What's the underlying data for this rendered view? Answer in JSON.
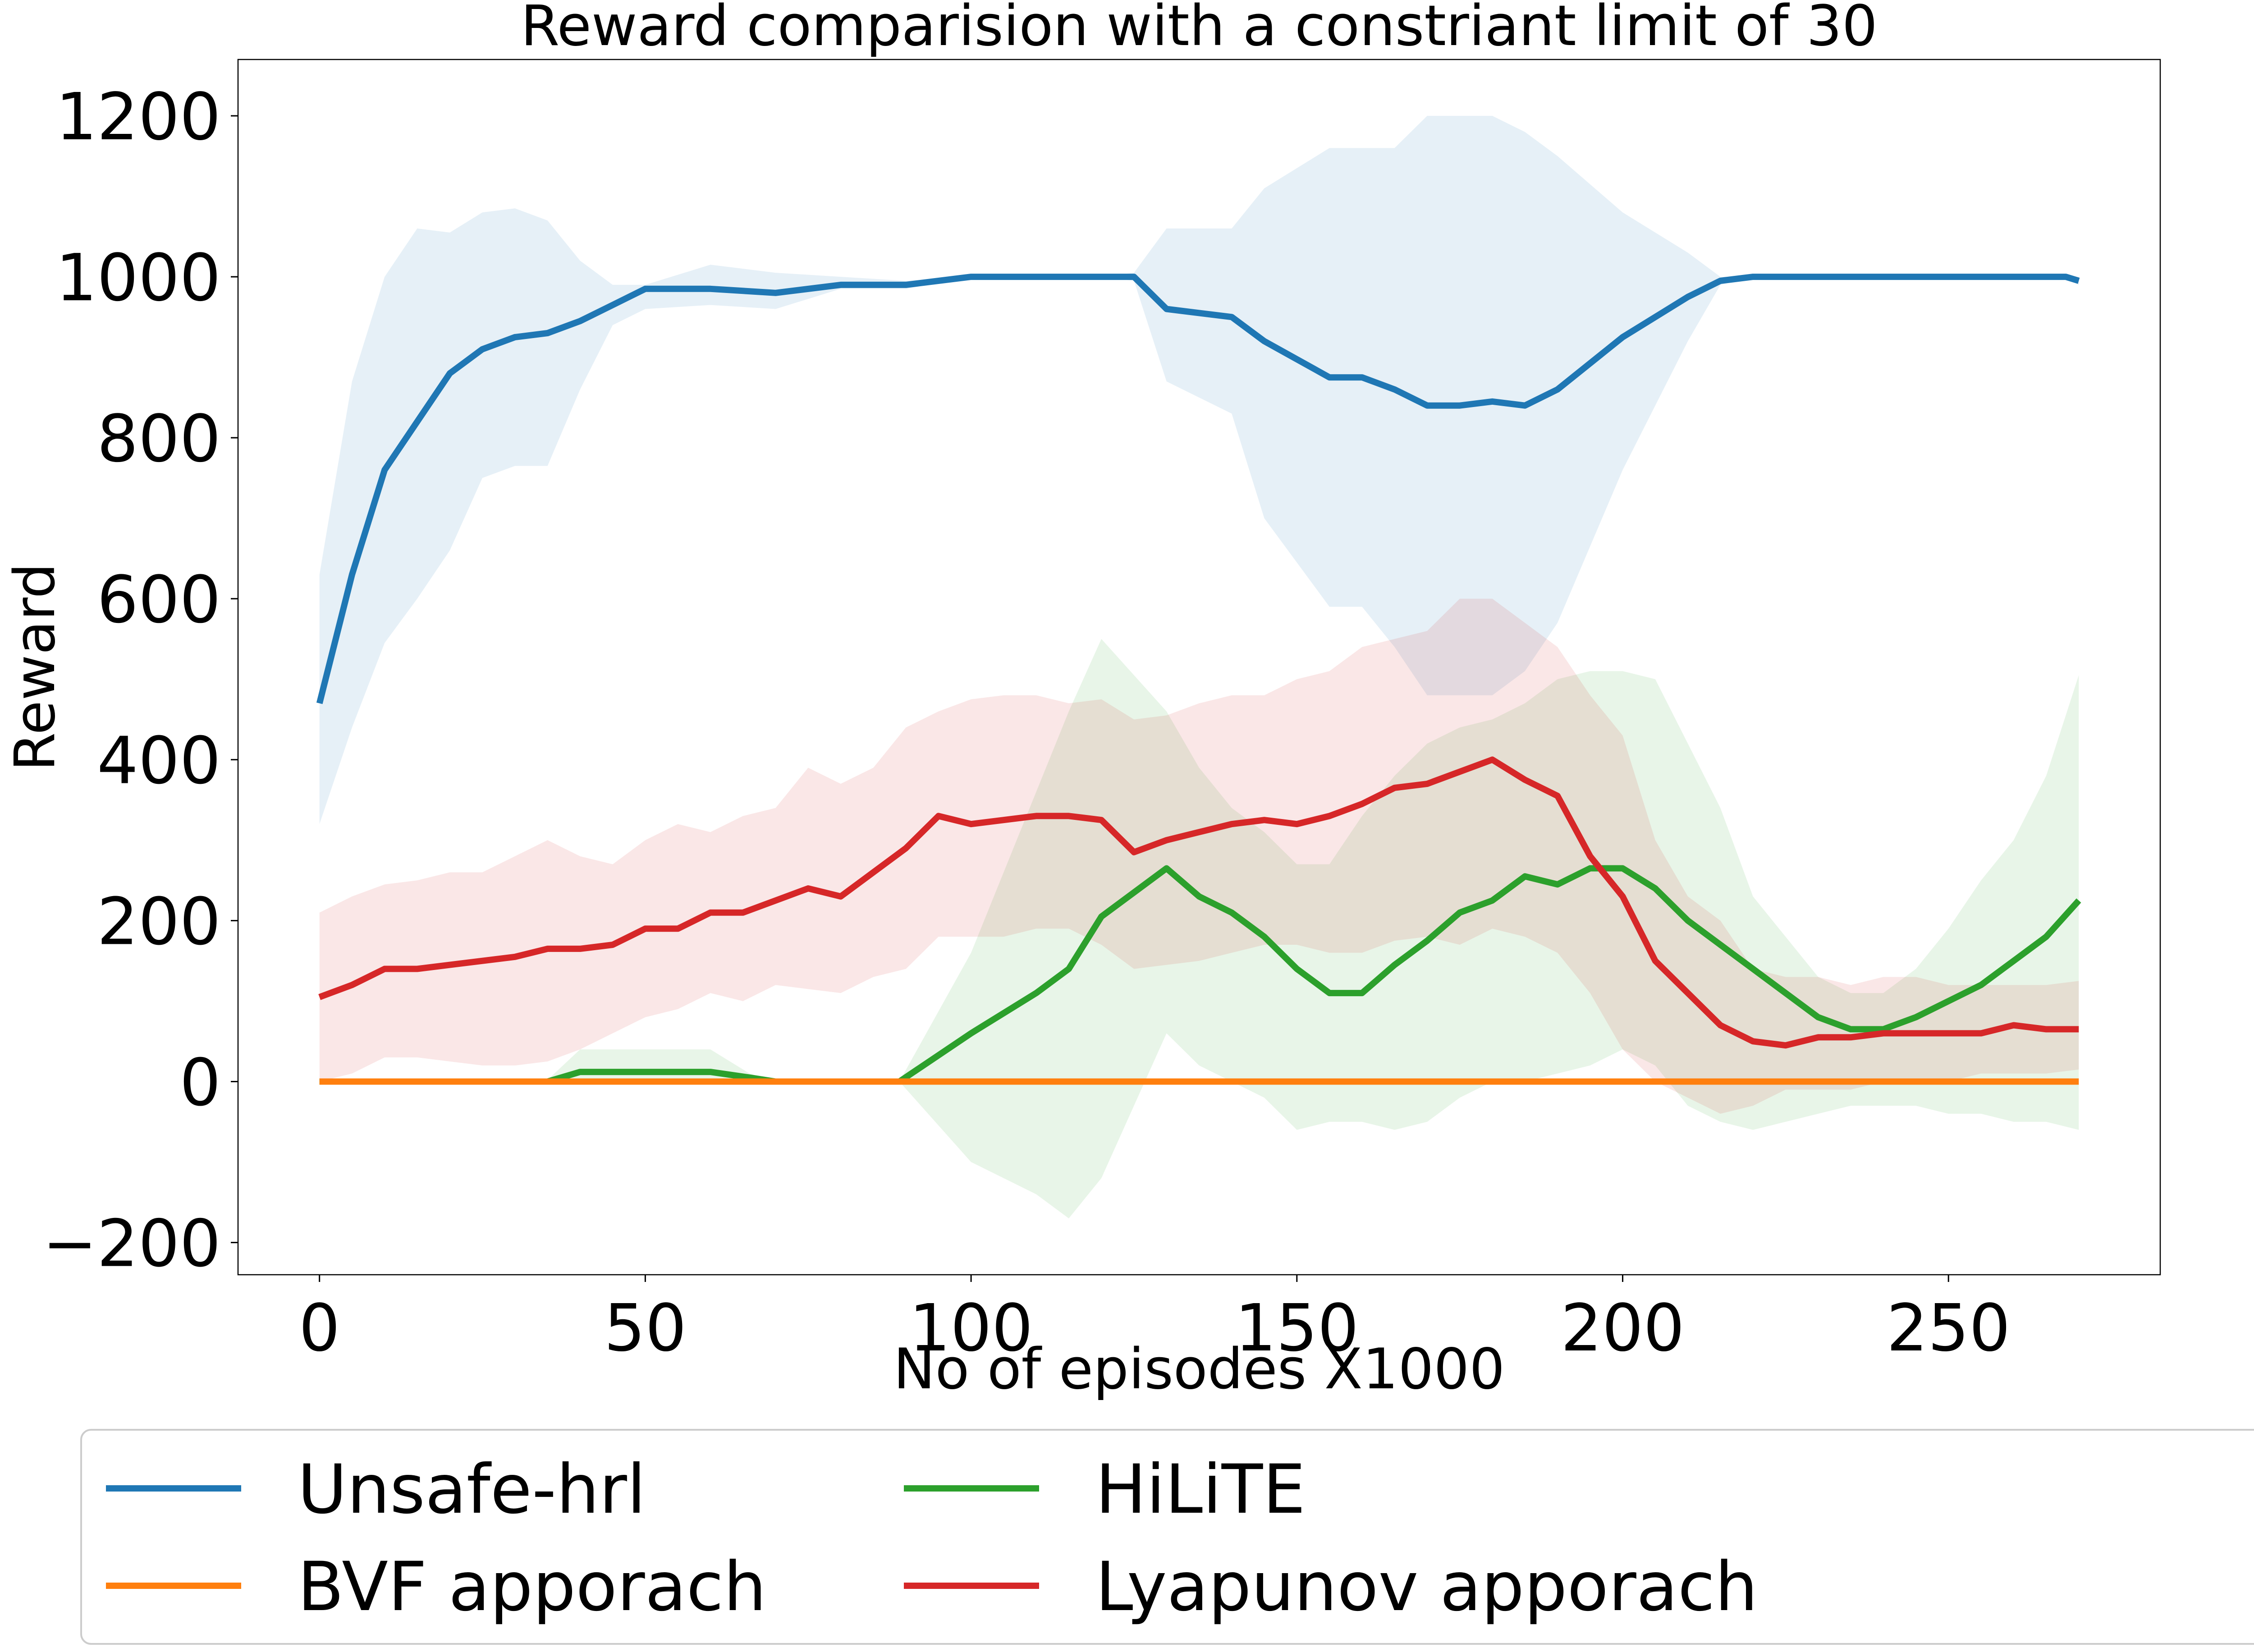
{
  "chart_data": {
    "type": "line",
    "title": "Reward comparision with a constriant limit of 30",
    "xlabel": "No of episodes X1000",
    "ylabel": "Reward",
    "xlim": [
      -12.5,
      282.5
    ],
    "ylim": [
      -240,
      1270
    ],
    "xticks": [
      0,
      50,
      100,
      150,
      200,
      250
    ],
    "xtick_labels": [
      "0",
      "50",
      "100",
      "150",
      "200",
      "250"
    ],
    "yticks": [
      -200,
      0,
      200,
      400,
      600,
      800,
      1000,
      1200
    ],
    "ytick_labels": [
      "−200",
      "0",
      "200",
      "400",
      "600",
      "800",
      "1000",
      "1200"
    ],
    "grid": false,
    "legend_position": "below plot, three columns",
    "series": [
      {
        "name": "Unsafe-hrl",
        "color": "#1f77b4",
        "x": [
          0,
          5,
          10,
          15,
          20,
          25,
          30,
          35,
          40,
          45,
          50,
          60,
          70,
          80,
          90,
          100,
          110,
          120,
          125,
          130,
          140,
          145,
          155,
          160,
          165,
          170,
          175,
          180,
          185,
          190,
          200,
          210,
          215,
          220,
          230,
          240,
          250,
          260,
          268,
          270
        ],
        "y": [
          470,
          630,
          760,
          820,
          880,
          910,
          925,
          930,
          945,
          965,
          985,
          985,
          980,
          990,
          990,
          1000,
          1000,
          1000,
          1000,
          960,
          950,
          920,
          875,
          875,
          860,
          840,
          840,
          845,
          840,
          860,
          925,
          975,
          995,
          1000,
          1000,
          1000,
          1000,
          1000,
          1000,
          995
        ],
        "band_upper": [
          630,
          870,
          1000,
          1060,
          1055,
          1080,
          1085,
          1070,
          1020,
          990,
          990,
          1015,
          1005,
          1000,
          995,
          1000,
          1000,
          1000,
          1005,
          1060,
          1060,
          1110,
          1160,
          1160,
          1160,
          1200,
          1200,
          1200,
          1180,
          1150,
          1080,
          1030,
          1000,
          1000,
          1000,
          1000,
          1000,
          1000,
          1000,
          1000
        ],
        "band_lower": [
          320,
          440,
          545,
          600,
          660,
          750,
          765,
          765,
          860,
          940,
          960,
          965,
          960,
          985,
          985,
          1000,
          1000,
          1000,
          995,
          870,
          830,
          700,
          590,
          590,
          540,
          480,
          480,
          480,
          510,
          570,
          760,
          920,
          990,
          1000,
          1000,
          1000,
          1000,
          1000,
          1000,
          990
        ]
      },
      {
        "name": "BVF apporach",
        "color": "#ff7f0e",
        "x": [
          0,
          35,
          45,
          60,
          70,
          90,
          100,
          150,
          200,
          250,
          270
        ],
        "y": [
          0,
          0,
          0,
          0,
          0,
          0,
          0,
          0,
          0,
          0,
          0
        ],
        "band_upper": [
          0,
          2,
          3,
          3,
          2,
          0,
          0,
          0,
          0,
          0,
          0
        ],
        "band_lower": [
          0,
          0,
          0,
          0,
          0,
          0,
          0,
          0,
          0,
          0,
          0
        ]
      },
      {
        "name": "HiLiTE",
        "color": "#2ca02c",
        "x": [
          0,
          35,
          40,
          60,
          66,
          70,
          89,
          100,
          110,
          115,
          120,
          130,
          135,
          140,
          145,
          150,
          155,
          160,
          165,
          170,
          175,
          180,
          185,
          190,
          195,
          200,
          205,
          210,
          215,
          220,
          225,
          230,
          235,
          240,
          245,
          250,
          255,
          260,
          265,
          270
        ],
        "y": [
          0,
          0,
          12,
          12,
          5,
          0,
          0,
          60,
          110,
          140,
          205,
          265,
          230,
          210,
          180,
          140,
          110,
          110,
          145,
          175,
          210,
          225,
          255,
          245,
          265,
          265,
          240,
          200,
          170,
          140,
          110,
          80,
          65,
          65,
          80,
          100,
          120,
          150,
          180,
          225
        ],
        "band_upper": [
          0,
          2,
          40,
          40,
          10,
          0,
          0,
          160,
          360,
          460,
          550,
          460,
          390,
          340,
          310,
          270,
          270,
          330,
          380,
          420,
          440,
          450,
          470,
          500,
          510,
          510,
          500,
          420,
          340,
          230,
          180,
          130,
          110,
          110,
          140,
          190,
          250,
          300,
          380,
          505
        ],
        "band_lower": [
          0,
          0,
          0,
          0,
          0,
          0,
          0,
          -100,
          -140,
          -170,
          -120,
          60,
          20,
          0,
          -20,
          -60,
          -50,
          -50,
          -60,
          -50,
          -20,
          0,
          0,
          10,
          20,
          40,
          20,
          -30,
          -50,
          -60,
          -50,
          -40,
          -30,
          -30,
          -30,
          -40,
          -40,
          -50,
          -50,
          -60
        ]
      },
      {
        "name": "Lyapunov apporach",
        "color": "#d62728",
        "x": [
          0,
          5,
          10,
          15,
          20,
          25,
          30,
          35,
          40,
          45,
          50,
          55,
          60,
          65,
          70,
          75,
          80,
          85,
          90,
          95,
          100,
          105,
          110,
          115,
          120,
          125,
          130,
          135,
          140,
          145,
          150,
          155,
          160,
          165,
          170,
          175,
          180,
          185,
          190,
          195,
          200,
          205,
          210,
          215,
          220,
          225,
          230,
          235,
          240,
          245,
          250,
          255,
          260,
          265,
          270
        ],
        "y": [
          105,
          120,
          140,
          140,
          145,
          150,
          155,
          165,
          165,
          170,
          190,
          190,
          210,
          210,
          225,
          240,
          230,
          260,
          290,
          330,
          320,
          325,
          330,
          330,
          325,
          285,
          300,
          310,
          320,
          325,
          320,
          330,
          345,
          365,
          370,
          385,
          400,
          375,
          355,
          280,
          230,
          150,
          110,
          70,
          50,
          45,
          55,
          55,
          60,
          60,
          60,
          60,
          70,
          65,
          65
        ],
        "band_upper": [
          210,
          230,
          245,
          250,
          260,
          260,
          280,
          300,
          280,
          270,
          300,
          320,
          310,
          330,
          340,
          390,
          370,
          390,
          440,
          460,
          475,
          480,
          480,
          470,
          475,
          450,
          455,
          470,
          480,
          480,
          500,
          510,
          540,
          550,
          560,
          600,
          600,
          570,
          540,
          480,
          430,
          300,
          230,
          200,
          140,
          130,
          130,
          120,
          130,
          130,
          120,
          120,
          120,
          120,
          125
        ],
        "band_lower": [
          0,
          10,
          30,
          30,
          25,
          20,
          20,
          25,
          40,
          60,
          80,
          90,
          110,
          100,
          120,
          115,
          110,
          130,
          140,
          180,
          180,
          180,
          190,
          190,
          170,
          140,
          145,
          150,
          160,
          170,
          170,
          160,
          160,
          175,
          180,
          170,
          190,
          180,
          160,
          110,
          40,
          0,
          -20,
          -40,
          -30,
          -10,
          -10,
          -10,
          0,
          0,
          0,
          10,
          10,
          10,
          15
        ]
      }
    ]
  }
}
